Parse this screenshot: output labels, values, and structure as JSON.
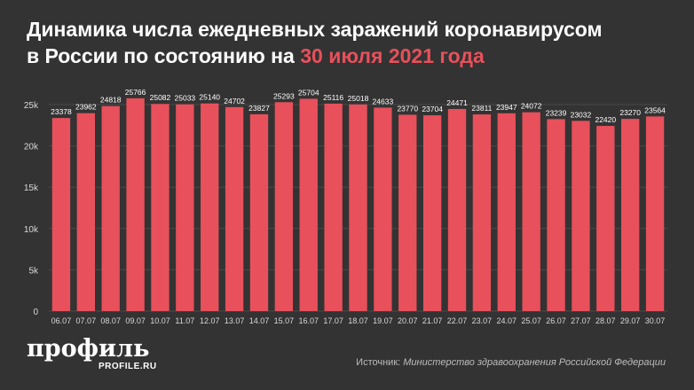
{
  "header": {
    "title_line1": "Динамика числа ежедневных заражений коронавирусом",
    "title_line2_prefix": "в России по состоянию на",
    "title_highlight": "30 июля 2021 года"
  },
  "brand": {
    "logo_text": "профиль",
    "logo_sub": "PROFILE.RU"
  },
  "source": {
    "label": "Источник:",
    "value": "Министерство здравоохранения Российской Федерации"
  },
  "colors": {
    "background": "#333333",
    "bar": "#e8505b",
    "accent": "#e8505b",
    "grid": "#4a4a4a",
    "text": "#ffffff"
  },
  "chart_data": {
    "type": "bar",
    "categories": [
      "06.07",
      "07.07",
      "08.07",
      "09.07",
      "10.07",
      "11.07",
      "12.07",
      "13.07",
      "14.07",
      "15.07",
      "16.07",
      "17.07",
      "18.07",
      "19.07",
      "20.07",
      "21.07",
      "22.07",
      "23.07",
      "24.07",
      "25.07",
      "26.07",
      "27.07",
      "28.07",
      "29.07",
      "30.07"
    ],
    "values": [
      23378,
      23962,
      24818,
      25766,
      25082,
      25033,
      25140,
      24702,
      23827,
      25293,
      25704,
      25116,
      25018,
      24633,
      23770,
      23704,
      24471,
      23811,
      23947,
      24072,
      23239,
      23032,
      22420,
      23270,
      23564
    ],
    "ylim": [
      0,
      25000
    ],
    "yticks": [
      0,
      5000,
      10000,
      15000,
      20000,
      25000
    ],
    "ytick_labels": [
      "0",
      "5k",
      "10k",
      "15k",
      "20k",
      "25k"
    ],
    "grid": true,
    "data_labels": true
  }
}
